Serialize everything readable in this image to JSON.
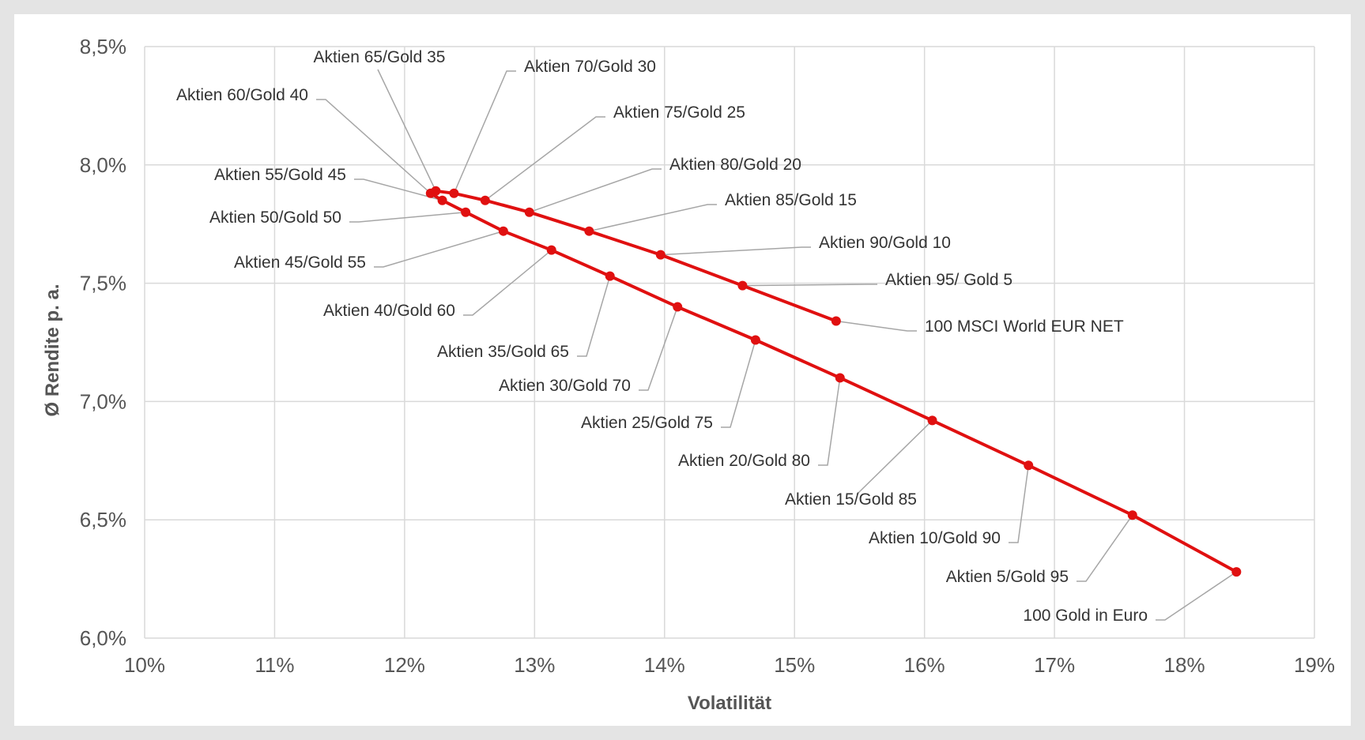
{
  "chart_data": {
    "type": "line",
    "title": "",
    "xlabel": "Volatilität",
    "ylabel": "Ø Rendite p. a.",
    "xlim": [
      10,
      19
    ],
    "ylim": [
      6.0,
      8.5
    ],
    "grid": true,
    "legend": "none",
    "x_ticks": [
      10,
      11,
      12,
      13,
      14,
      15,
      16,
      17,
      18,
      19
    ],
    "x_tick_labels": [
      "10%",
      "11%",
      "12%",
      "13%",
      "14%",
      "15%",
      "16%",
      "17%",
      "18%",
      "19%"
    ],
    "y_ticks": [
      6.0,
      6.5,
      7.0,
      7.5,
      8.0,
      8.5
    ],
    "y_tick_labels": [
      "6,0%",
      "6,5%",
      "7,0%",
      "7,5%",
      "8,0%",
      "8,5%"
    ],
    "colors": {
      "series": "#e01010",
      "grid": "#d9d9d9",
      "leader": "#a6a6a6"
    },
    "series": [
      {
        "points": [
          {
            "x": 18.4,
            "y": 6.28,
            "label": "100 Gold in Euro"
          },
          {
            "x": 17.6,
            "y": 6.52,
            "label": "Aktien 5/Gold 95"
          },
          {
            "x": 16.8,
            "y": 6.73,
            "label": "Aktien 10/Gold 90"
          },
          {
            "x": 16.06,
            "y": 6.92,
            "label": "Aktien 15/Gold 85"
          },
          {
            "x": 15.35,
            "y": 7.1,
            "label": "Aktien 20/Gold 80"
          },
          {
            "x": 14.7,
            "y": 7.26,
            "label": "Aktien 25/Gold 75"
          },
          {
            "x": 14.1,
            "y": 7.4,
            "label": "Aktien 30/Gold 70"
          },
          {
            "x": 13.58,
            "y": 7.53,
            "label": "Aktien 35/Gold 65"
          },
          {
            "x": 13.13,
            "y": 7.64,
            "label": "Aktien 40/Gold 60"
          },
          {
            "x": 12.76,
            "y": 7.72,
            "label": "Aktien 45/Gold 55"
          },
          {
            "x": 12.47,
            "y": 7.8,
            "label": "Aktien 50/Gold 50"
          },
          {
            "x": 12.29,
            "y": 7.85,
            "label": "Aktien 55/Gold 45"
          },
          {
            "x": 12.2,
            "y": 7.88,
            "label": "Aktien 60/Gold 40"
          },
          {
            "x": 12.24,
            "y": 7.89,
            "label": "Aktien 65/Gold 35"
          },
          {
            "x": 12.38,
            "y": 7.88,
            "label": "Aktien 70/Gold 30"
          },
          {
            "x": 12.62,
            "y": 7.85,
            "label": "Aktien 75/Gold 25"
          },
          {
            "x": 12.96,
            "y": 7.8,
            "label": "Aktien 80/Gold 20"
          },
          {
            "x": 13.42,
            "y": 7.72,
            "label": "Aktien 85/Gold 15"
          },
          {
            "x": 13.97,
            "y": 7.62,
            "label": "Aktien 90/Gold 10"
          },
          {
            "x": 14.6,
            "y": 7.49,
            "label": "Aktien 95/ Gold 5"
          },
          {
            "x": 15.32,
            "y": 7.34,
            "label": "100 MSCI World EUR NET"
          }
        ]
      }
    ]
  }
}
